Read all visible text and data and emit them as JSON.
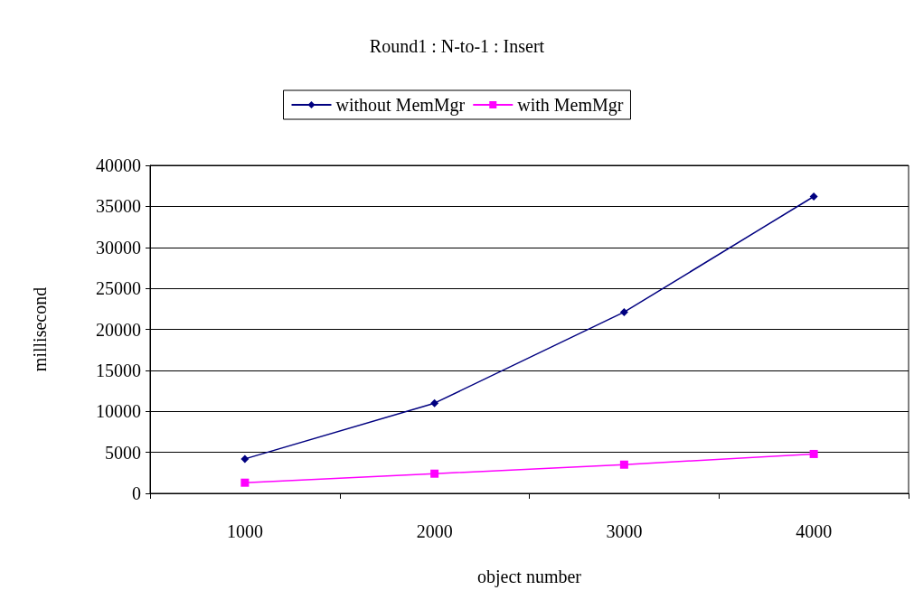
{
  "chart_data": {
    "type": "line",
    "title": "Round1 : N-to-1 : Insert",
    "xlabel": "object number",
    "ylabel": "millisecond",
    "categories": [
      "1000",
      "2000",
      "3000",
      "4000"
    ],
    "series": [
      {
        "name": "without MemMgr",
        "color": "#000080",
        "marker": "diamond",
        "values": [
          4200,
          11000,
          22100,
          36200
        ]
      },
      {
        "name": "with MemMgr",
        "color": "#ff00ff",
        "marker": "square",
        "values": [
          1300,
          2400,
          3500,
          4800
        ]
      }
    ],
    "ylim": [
      0,
      40000
    ],
    "yticks": [
      0,
      5000,
      10000,
      15000,
      20000,
      25000,
      30000,
      35000,
      40000
    ],
    "grid": "y",
    "legend": "top",
    "line_style": "solid"
  }
}
